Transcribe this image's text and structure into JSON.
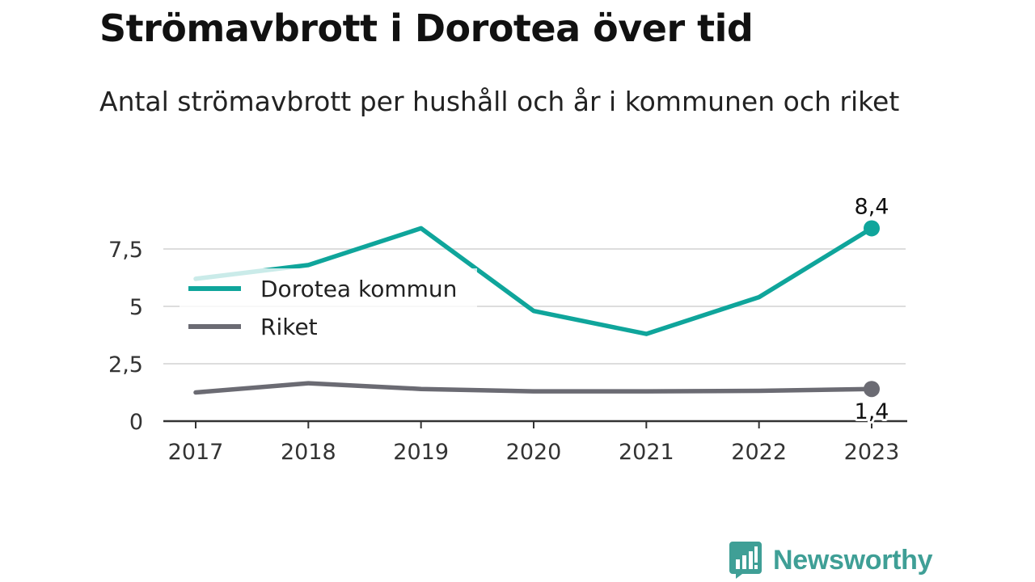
{
  "header": {
    "title": "Strömavbrott i Dorotea över tid",
    "subtitle": "Antal strömavbrott per hushåll och år i kommunen och riket"
  },
  "chart_data": {
    "type": "line",
    "x": [
      "2017",
      "2018",
      "2019",
      "2020",
      "2021",
      "2022",
      "2023"
    ],
    "series": [
      {
        "name": "Dorotea kommun",
        "color": "#0fa59b",
        "values": [
          6.2,
          6.8,
          8.4,
          4.8,
          3.8,
          5.4,
          8.4
        ]
      },
      {
        "name": "Riket",
        "color": "#6b6b73",
        "values": [
          1.25,
          1.65,
          1.4,
          1.3,
          1.3,
          1.32,
          1.4
        ]
      }
    ],
    "end_labels": [
      "8,4",
      "1,4"
    ],
    "y_ticks": [
      {
        "value": 0,
        "label": "0"
      },
      {
        "value": 2.5,
        "label": "2,5"
      },
      {
        "value": 5,
        "label": "5"
      },
      {
        "value": 7.5,
        "label": "7,5"
      }
    ],
    "ylim": [
      0,
      9
    ],
    "grid": true,
    "legend_position": "left"
  },
  "branding": {
    "name": "Newsworthy",
    "icon": "newsworthy-logo-icon",
    "color": "#3f9f96"
  }
}
